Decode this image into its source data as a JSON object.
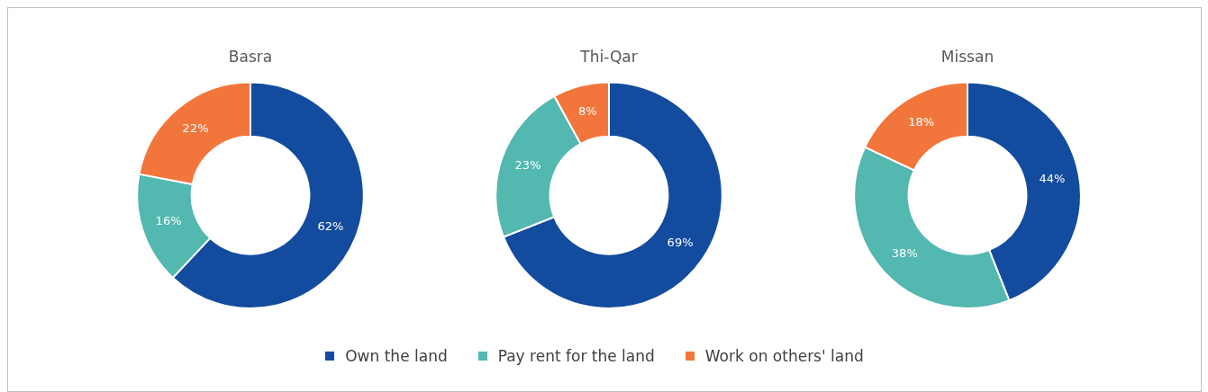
{
  "chart_data": [
    {
      "type": "donut",
      "title": "Basra",
      "categories": [
        "Own the land",
        "Pay rent for the land",
        "Work on others' land"
      ],
      "values": [
        62,
        16,
        22
      ],
      "colors": [
        "#134c9e",
        "#52b8b0",
        "#f2763b"
      ],
      "value_labels": [
        "62%",
        "16%",
        "22%"
      ],
      "legend": "bottom"
    },
    {
      "type": "donut",
      "title": "Thi-Qar",
      "categories": [
        null,
        null,
        null
      ],
      "values": [
        69,
        23,
        8
      ],
      "colors": [
        "#134c9e",
        "#52b8b0",
        "#f2763b"
      ],
      "value_labels": [
        "69%",
        "23%",
        "8%"
      ]
    },
    {
      "type": "donut",
      "title": "Missan",
      "categories": [
        null,
        null,
        null
      ],
      "values": [
        44,
        38,
        18
      ],
      "colors": [
        "#134c9e",
        "#52b8b0",
        "#f2763b"
      ],
      "value_labels": [
        "44%",
        "38%",
        "18%"
      ]
    }
  ]
}
